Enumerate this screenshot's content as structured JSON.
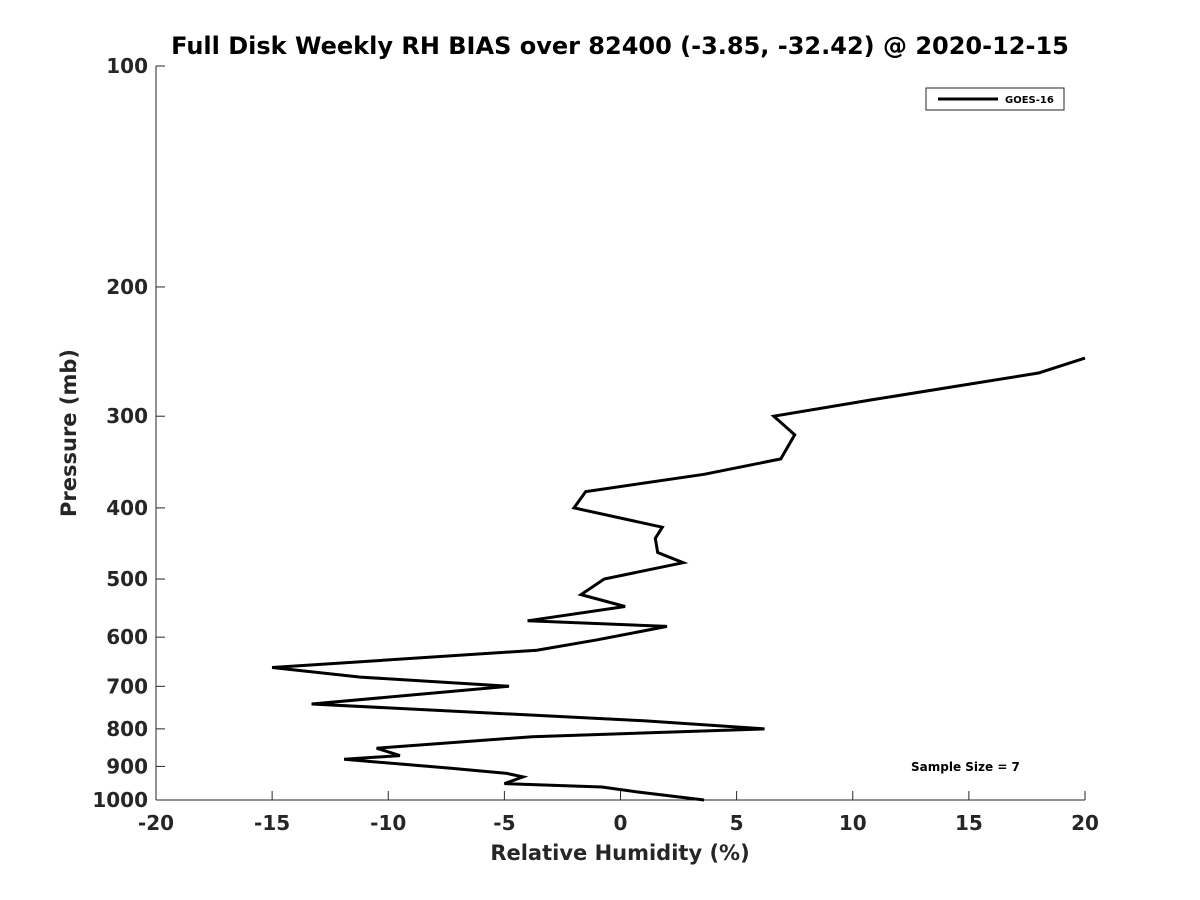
{
  "chart_data": {
    "type": "line",
    "title": "Full Disk Weekly RH BIAS over 82400 (-3.85, -32.42) @ 2020-12-15",
    "xlabel": "Relative Humidity (%)",
    "ylabel": "Pressure (mb)",
    "xlim": [
      -20,
      20
    ],
    "ylim": [
      100,
      1000
    ],
    "y_scale": "log",
    "y_reversed": true,
    "x_ticks": [
      "-20",
      "-15",
      "-10",
      "-5",
      "0",
      "5",
      "10",
      "15",
      "20"
    ],
    "y_ticks": [
      "100",
      "200",
      "300",
      "400",
      "500",
      "600",
      "700",
      "800",
      "900",
      "1000"
    ],
    "grid": false,
    "legend_position": "top-right",
    "annotation": "Sample Size = 7",
    "series": [
      {
        "name": "GOES-16",
        "color": "#000000",
        "points": [
          {
            "x": 20.0,
            "p": 250
          },
          {
            "x": 18.0,
            "p": 262
          },
          {
            "x": 10.8,
            "p": 285
          },
          {
            "x": 6.6,
            "p": 300
          },
          {
            "x": 7.5,
            "p": 318
          },
          {
            "x": 6.9,
            "p": 343
          },
          {
            "x": 3.6,
            "p": 360
          },
          {
            "x": -1.5,
            "p": 380
          },
          {
            "x": -2.0,
            "p": 400
          },
          {
            "x": 1.8,
            "p": 425
          },
          {
            "x": 1.5,
            "p": 440
          },
          {
            "x": 1.6,
            "p": 460
          },
          {
            "x": 2.7,
            "p": 475
          },
          {
            "x": -0.7,
            "p": 500
          },
          {
            "x": -1.7,
            "p": 525
          },
          {
            "x": 0.2,
            "p": 545
          },
          {
            "x": -4.0,
            "p": 570
          },
          {
            "x": 2.0,
            "p": 580
          },
          {
            "x": -1.0,
            "p": 605
          },
          {
            "x": -3.6,
            "p": 625
          },
          {
            "x": -15.0,
            "p": 660
          },
          {
            "x": -11.2,
            "p": 680
          },
          {
            "x": -4.8,
            "p": 700
          },
          {
            "x": -13.3,
            "p": 740
          },
          {
            "x": 1.0,
            "p": 780
          },
          {
            "x": 6.2,
            "p": 800
          },
          {
            "x": -3.8,
            "p": 820
          },
          {
            "x": -10.5,
            "p": 850
          },
          {
            "x": -9.5,
            "p": 870
          },
          {
            "x": -11.9,
            "p": 880
          },
          {
            "x": -7.3,
            "p": 905
          },
          {
            "x": -4.9,
            "p": 920
          },
          {
            "x": -4.2,
            "p": 930
          },
          {
            "x": -5.0,
            "p": 950
          },
          {
            "x": -0.8,
            "p": 960
          },
          {
            "x": 0.7,
            "p": 975
          },
          {
            "x": 3.6,
            "p": 1000
          }
        ]
      }
    ]
  }
}
